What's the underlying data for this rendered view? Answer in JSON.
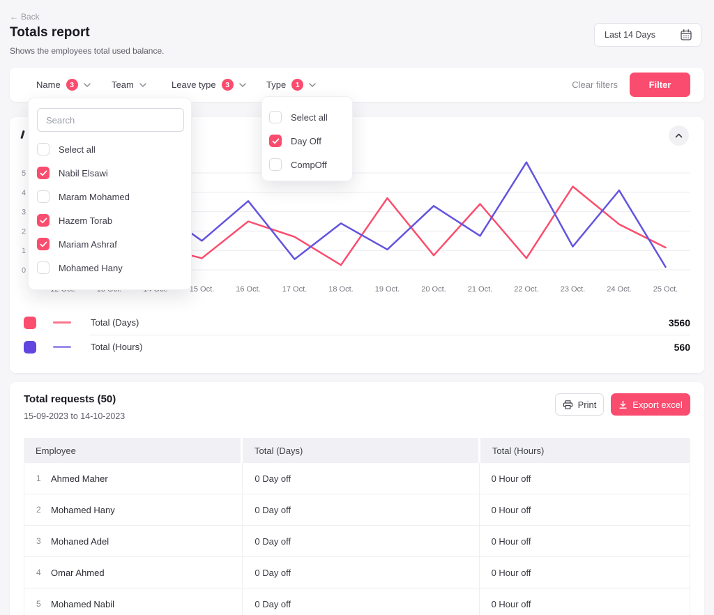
{
  "header": {
    "back_label": "Back",
    "back_icon": "←",
    "title": "Totals report",
    "subtitle": "Shows the employees total used balance.",
    "date_range_value": "Last 14 Days"
  },
  "filter_bar": {
    "items": [
      {
        "label": "Name",
        "badge": "3"
      },
      {
        "label": "Team",
        "badge": ""
      },
      {
        "label": "Leave type",
        "badge": "3"
      },
      {
        "label": "Type",
        "badge": "1"
      }
    ],
    "clear_label": "Clear filters",
    "filter_label": "Filter"
  },
  "name_dropdown": {
    "search_placeholder": "Search",
    "options": [
      {
        "label": "Select all",
        "checked": false
      },
      {
        "label": "Nabil Elsawi",
        "checked": true
      },
      {
        "label": "Maram Mohamed",
        "checked": false
      },
      {
        "label": "Hazem Torab",
        "checked": true
      },
      {
        "label": "Mariam Ashraf",
        "checked": true
      },
      {
        "label": "Mohamed Hany",
        "checked": false
      }
    ]
  },
  "type_dropdown": {
    "options": [
      {
        "label": "Select all",
        "checked": false
      },
      {
        "label": "Day Off",
        "checked": true
      },
      {
        "label": "CompOff",
        "checked": false
      }
    ]
  },
  "chart_data": {
    "type": "line",
    "categories": [
      "12 Oct.",
      "13 Oct.",
      "14 Oct.",
      "15 Oct.",
      "16 Oct.",
      "17 Oct.",
      "18 Oct.",
      "19 Oct.",
      "20 Oct.",
      "21 Oct.",
      "22 Oct.",
      "23 Oct.",
      "24 Oct.",
      "25 Oct."
    ],
    "series": [
      {
        "name": "Total (Days)",
        "color": "#fb4d6d",
        "values": [
          2.2,
          3.0,
          1.2,
          0.6,
          2.5,
          1.7,
          0.25,
          3.7,
          0.75,
          3.4,
          0.6,
          4.3,
          2.35,
          1.15
        ]
      },
      {
        "name": "Total (Hours)",
        "color": "#6354df",
        "values": [
          1.0,
          2.2,
          3.2,
          1.5,
          3.55,
          0.55,
          2.4,
          1.05,
          3.3,
          1.75,
          5.55,
          1.2,
          4.1,
          0.15
        ]
      }
    ],
    "yticks": [
      0,
      1,
      2,
      3,
      4,
      5
    ],
    "ylim": [
      0,
      5.8
    ],
    "grid": true,
    "legend_position": "bottom",
    "legend": [
      {
        "label": "Total (Days)",
        "total": "3560",
        "swatch_color": "#fb4d6d",
        "dash_color": "#f8758d"
      },
      {
        "label": "Total (Hours)",
        "total": "560",
        "swatch_color": "#6246df",
        "dash_color": "#9c8feb"
      }
    ]
  },
  "table_card": {
    "title": "Total requests (50)",
    "date_range": "15-09-2023 to 14-10-2023",
    "print_label": "Print",
    "export_label": "Export excel",
    "columns": [
      "Employee",
      "Total (Days)",
      "Total (Hours)"
    ],
    "rows": [
      {
        "index": "1",
        "employee": "Ahmed Maher",
        "days": "0 Day off",
        "hours": "0 Hour off"
      },
      {
        "index": "2",
        "employee": "Mohamed Hany",
        "days": "0 Day off",
        "hours": "0 Hour off"
      },
      {
        "index": "3",
        "employee": "Mohaned Adel",
        "days": "0 Day off",
        "hours": "0 Hour off"
      },
      {
        "index": "4",
        "employee": "Omar Ahmed",
        "days": "0 Day off",
        "hours": "0 Hour off"
      },
      {
        "index": "5",
        "employee": "Mohamed Nabil",
        "days": "0 Day off",
        "hours": "0 Hour off"
      }
    ]
  },
  "colors": {
    "accent_pink": "#fa4c6e",
    "accent_purple": "#6246df",
    "page_bg": "#f6f6f8",
    "grid_line": "#ececf1",
    "axis_text": "#8f8f99"
  }
}
